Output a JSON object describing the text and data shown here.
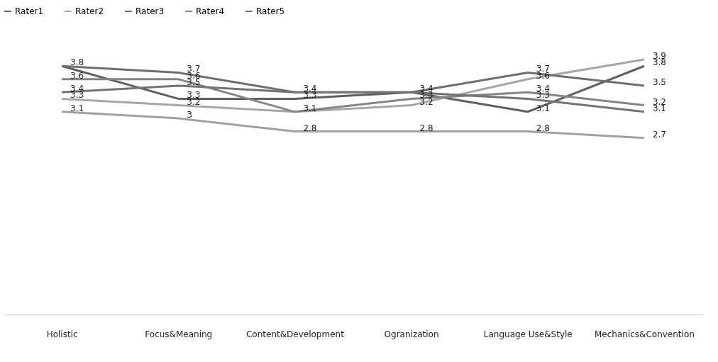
{
  "chart_data": {
    "type": "line",
    "categories": [
      "Holistic",
      "Focus&Meaning",
      "Content&Development",
      "Ogranization",
      "Language Use&Style",
      "Mechanics&Convention"
    ],
    "series": [
      {
        "color": "#a0a0a0",
        "values": [
          3.1,
          3.0,
          2.8,
          2.8,
          2.8,
          2.7
        ],
        "value_labels": [
          "3.1",
          "3",
          "2.8",
          "2.8",
          "2.8",
          "2.7"
        ]
      },
      {
        "name": "Rater1",
        "color": "#5f5f5f",
        "values": [
          3.8,
          3.3,
          3.3,
          3.4,
          3.1,
          3.8
        ],
        "value_labels": [
          "3.8",
          "3.3",
          "3.3",
          "3.4",
          "3.1",
          "3.8"
        ]
      },
      {
        "name": "Rater2",
        "color": "#a6a6a6",
        "values": [
          3.3,
          3.2,
          3.1,
          3.2,
          3.6,
          3.9
        ],
        "value_labels": [
          "3.3",
          "3.2",
          "3.1",
          "3.2",
          "3.6",
          "3.9"
        ]
      },
      {
        "name": "Rater3",
        "color": "#6e6e6e",
        "values": [
          3.8,
          3.7,
          3.4,
          3.4,
          3.7,
          3.5
        ],
        "value_labels": [
          null,
          "3.7",
          "3.4",
          null,
          "3.7",
          "3.5"
        ]
      },
      {
        "name": "Rater4",
        "color": "#858585",
        "values": [
          3.6,
          3.6,
          3.1,
          3.3,
          3.4,
          3.2
        ],
        "value_labels": [
          "3.6",
          "3.6",
          null,
          "3.3",
          "3.4",
          "3.2"
        ]
      },
      {
        "name": "Rater5",
        "color": "#737373",
        "values": [
          3.4,
          3.5,
          3.4,
          3.4,
          3.3,
          3.1
        ],
        "value_labels": [
          "3.4",
          "3.5",
          null,
          null,
          "3.3",
          "3.1"
        ]
      }
    ],
    "tick_labels": "x",
    "grid": false,
    "legend": "top",
    "marker": "none",
    "line_style": "solid"
  }
}
